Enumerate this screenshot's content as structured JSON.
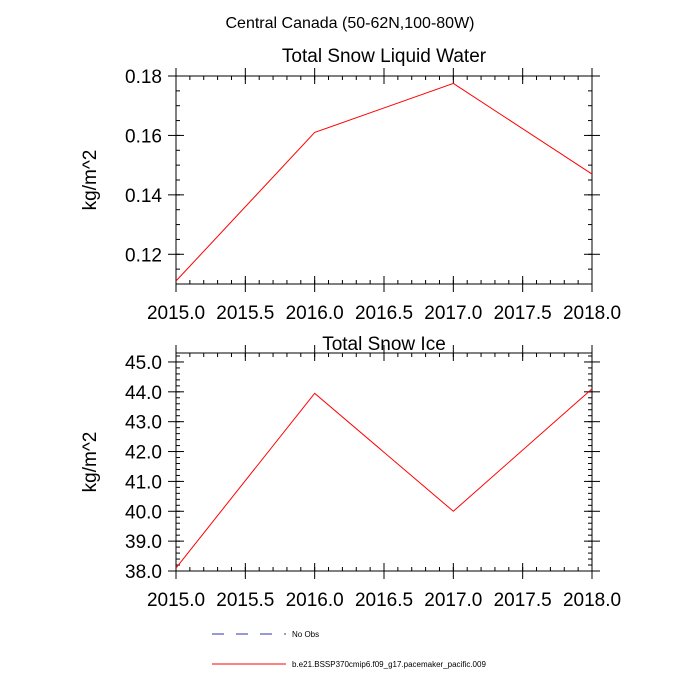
{
  "suptitle": "Central Canada (50-62N,100-80W)",
  "colors": {
    "model": "#ff0000",
    "obs": "#3333aa"
  },
  "chart_data": [
    {
      "type": "line",
      "title": "Total Snow Liquid Water",
      "xlabel": "",
      "ylabel": "kg/m^2",
      "xlim": [
        2015.0,
        2018.0
      ],
      "ylim": [
        0.11,
        0.18
      ],
      "xticks": [
        "2015.0",
        "2015.5",
        "2016.0",
        "2016.5",
        "2017.0",
        "2017.5",
        "2018.0"
      ],
      "yticks": [
        "0.12",
        "0.14",
        "0.16",
        "0.18"
      ],
      "grid": false,
      "series": [
        {
          "name": "b.e21.BSSP370cmip6.f09_g17.pacemaker_pacific.009",
          "x": [
            2015.0,
            2016.0,
            2017.0,
            2018.0
          ],
          "y": [
            0.111,
            0.161,
            0.1775,
            0.147
          ]
        }
      ]
    },
    {
      "type": "line",
      "title": "Total Snow Ice",
      "xlabel": "",
      "ylabel": "kg/m^2",
      "xlim": [
        2015.0,
        2018.0
      ],
      "ylim": [
        38.0,
        45.3
      ],
      "xticks": [
        "2015.0",
        "2015.5",
        "2016.0",
        "2016.5",
        "2017.0",
        "2017.5",
        "2018.0"
      ],
      "yticks": [
        "38.0",
        "39.0",
        "40.0",
        "41.0",
        "42.0",
        "43.0",
        "44.0",
        "45.0"
      ],
      "grid": false,
      "series": [
        {
          "name": "b.e21.BSSP370cmip6.f09_g17.pacemaker_pacific.009",
          "x": [
            2015.0,
            2016.0,
            2017.0,
            2018.0
          ],
          "y": [
            38.1,
            43.95,
            40.0,
            44.1
          ]
        }
      ]
    }
  ],
  "legend": {
    "placement": "bottom-center",
    "entries": [
      {
        "label": "No Obs",
        "style": "dashed",
        "color": "#3333aa"
      },
      {
        "label": "b.e21.BSSP370cmip6.f09_g17.pacemaker_pacific.009",
        "style": "solid",
        "color": "#ff0000"
      }
    ]
  }
}
